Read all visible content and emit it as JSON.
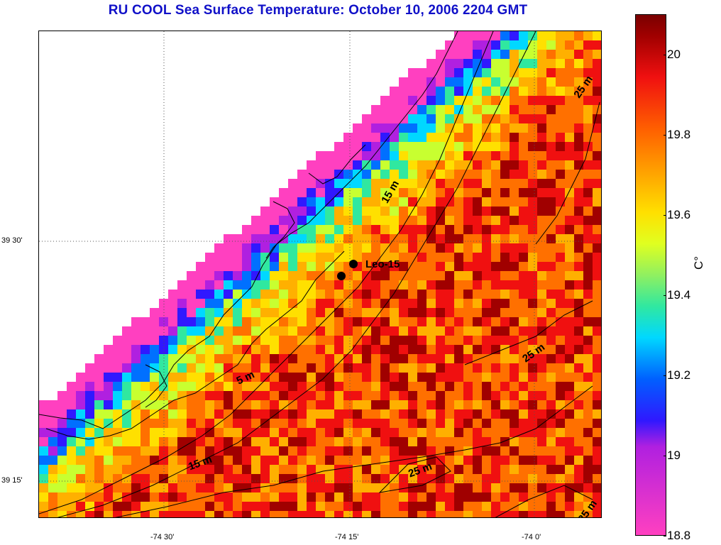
{
  "title": "RU COOL  Sea Surface Temperature:  October 10, 2006 2204 GMT",
  "map": {
    "station_label": "Leo-15",
    "depth_labels": [
      "5 m",
      "15 m",
      "15 m",
      "25 m",
      "25 m",
      "25 m",
      "25 m"
    ],
    "lat_labels": [
      "39 30'",
      "39 15'"
    ],
    "lon_labels": [
      "-74 30'",
      "-74 15'",
      "-74 0'"
    ]
  },
  "colorbar": {
    "min": 18.8,
    "max": 20.1,
    "unit": "C°",
    "ticks": [
      "18.8",
      "19",
      "19.2",
      "19.4",
      "19.6",
      "19.8",
      "20"
    ],
    "colors": {
      "low": "#ff40c0",
      "mid": "#e0ff20",
      "high": "#7a0000"
    }
  }
}
